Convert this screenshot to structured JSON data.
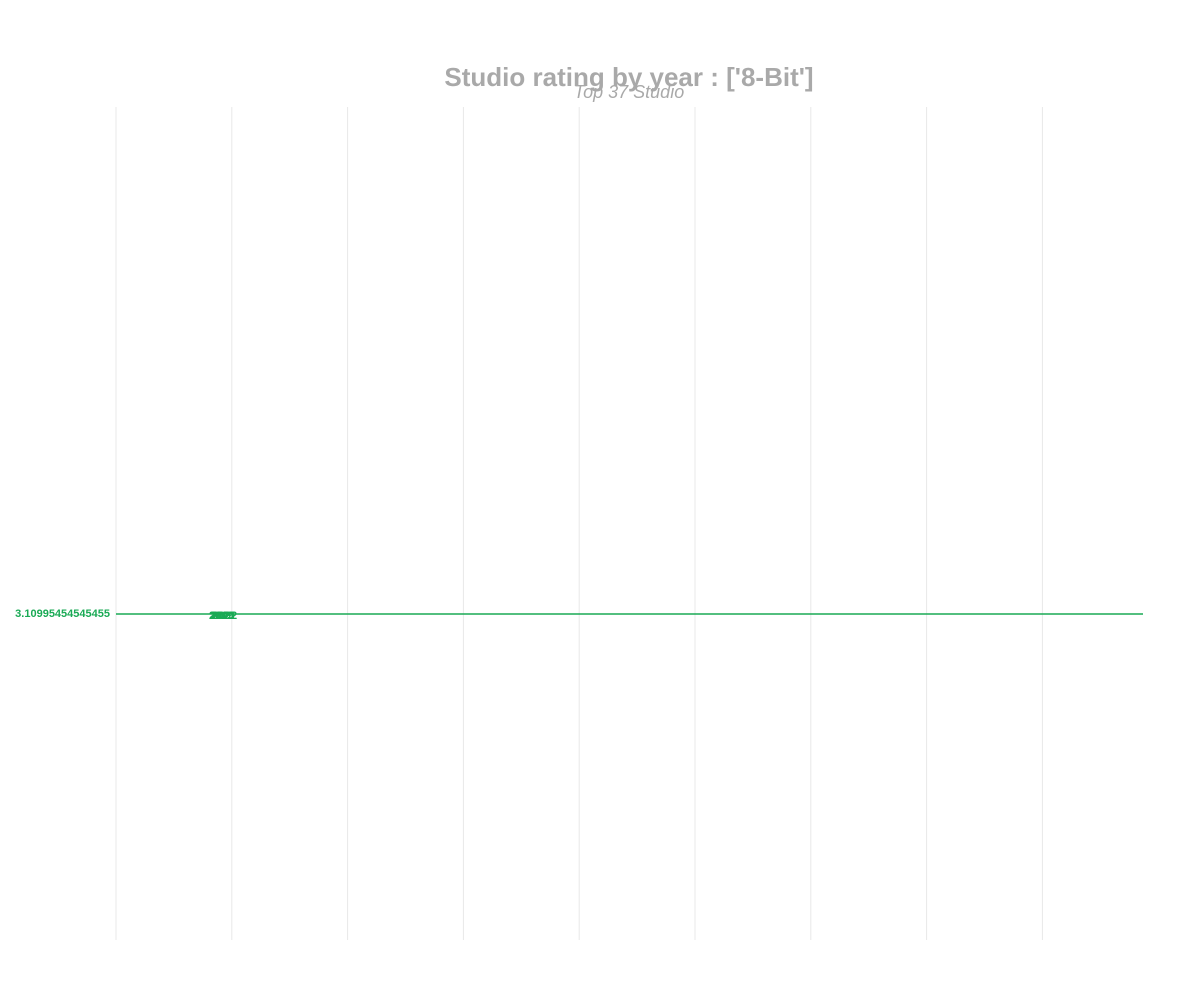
{
  "chart_data": {
    "type": "line",
    "title": "Studio rating by year : ['8-Bit']",
    "subtitle": "Top 37 Studio",
    "xlabel": "",
    "ylabel": "",
    "grid": {
      "vertical": true,
      "horizontal": false
    },
    "series_color": "#1aaa55",
    "series": [
      {
        "value": 3.10995454545455,
        "value_label": "3.10995454545455",
        "year_labels": [
          "2019",
          "2020",
          "2021",
          "2022"
        ]
      }
    ]
  }
}
